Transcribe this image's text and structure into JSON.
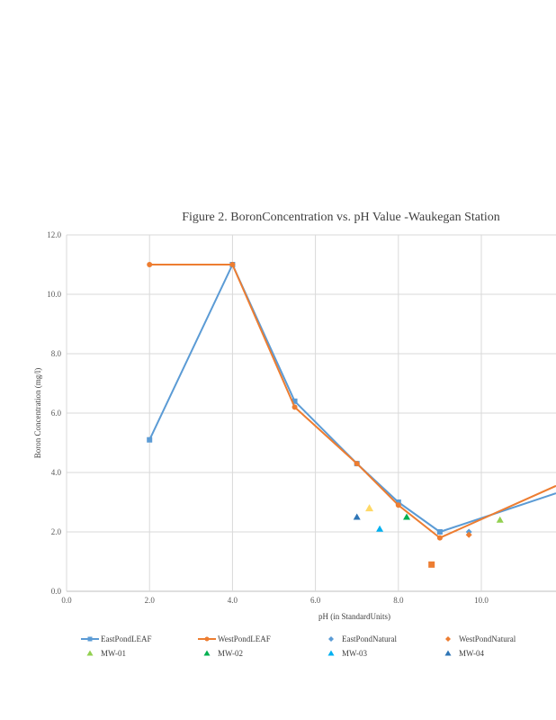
{
  "chart_data": {
    "type": "line",
    "title": "Figure 2. BoronConcentration  vs. pH Value  -Waukegan   Station",
    "xlabel": "pH (in StandardUnits)",
    "ylabel": "Boron Concentration  (mg/l)",
    "xlim": [
      0,
      11.8
    ],
    "ylim": [
      0,
      12
    ],
    "x_ticks": [
      "0.0",
      "2.0",
      "4.0",
      "6.0",
      "8.0",
      "10.0"
    ],
    "y_ticks": [
      "0.0",
      "2.0",
      "4.0",
      "6.0",
      "8.0",
      "10.0",
      "12.0"
    ],
    "grid": true,
    "legend_position": "bottom",
    "series": [
      {
        "name": "EastPondLEAF",
        "kind": "line",
        "marker": "square",
        "color": "#5b9bd5",
        "points": [
          [
            2.0,
            5.1
          ],
          [
            4.0,
            11.0
          ],
          [
            5.5,
            6.4
          ],
          [
            7.0,
            4.3
          ],
          [
            8.0,
            3.0
          ],
          [
            9.0,
            2.0
          ],
          [
            11.8,
            3.3
          ]
        ]
      },
      {
        "name": "WestPondLEAF",
        "kind": "line",
        "marker": "circle",
        "color": "#ed7d31",
        "points": [
          [
            2.0,
            11.0
          ],
          [
            4.0,
            11.0
          ],
          [
            5.5,
            6.2
          ],
          [
            7.0,
            4.3
          ],
          [
            8.0,
            2.9
          ],
          [
            9.0,
            1.8
          ],
          [
            11.8,
            3.55
          ]
        ]
      },
      {
        "name": "EastPondNatural",
        "kind": "scatter",
        "marker": "diamond",
        "color": "#5b9bd5",
        "points": [
          [
            9.7,
            2.0
          ]
        ]
      },
      {
        "name": "WestPondNatural",
        "kind": "scatter",
        "marker": "diamond",
        "color": "#ed7d31",
        "points": [
          [
            9.7,
            1.9
          ]
        ]
      },
      {
        "name": "MW-01",
        "kind": "scatter",
        "marker": "triangle",
        "color": "#92d050",
        "points": [
          [
            10.45,
            2.4
          ]
        ]
      },
      {
        "name": "MW-02",
        "kind": "scatter",
        "marker": "triangle",
        "color": "#00b050",
        "points": [
          [
            8.2,
            2.5
          ]
        ]
      },
      {
        "name": "MW-03",
        "kind": "scatter",
        "marker": "triangle",
        "color": "#00b0f0",
        "points": [
          [
            7.55,
            2.1
          ]
        ]
      },
      {
        "name": "MW-04",
        "kind": "scatter",
        "marker": "triangle",
        "color": "#2e75b6",
        "points": [
          [
            7.0,
            2.5
          ]
        ]
      }
    ],
    "unlabeled_points": [
      {
        "marker": "triangle",
        "color": "#ffd966",
        "x": 7.3,
        "y": 2.8
      },
      {
        "marker": "square",
        "color": "#ed7d31",
        "x": 8.8,
        "y": 0.9
      }
    ]
  }
}
